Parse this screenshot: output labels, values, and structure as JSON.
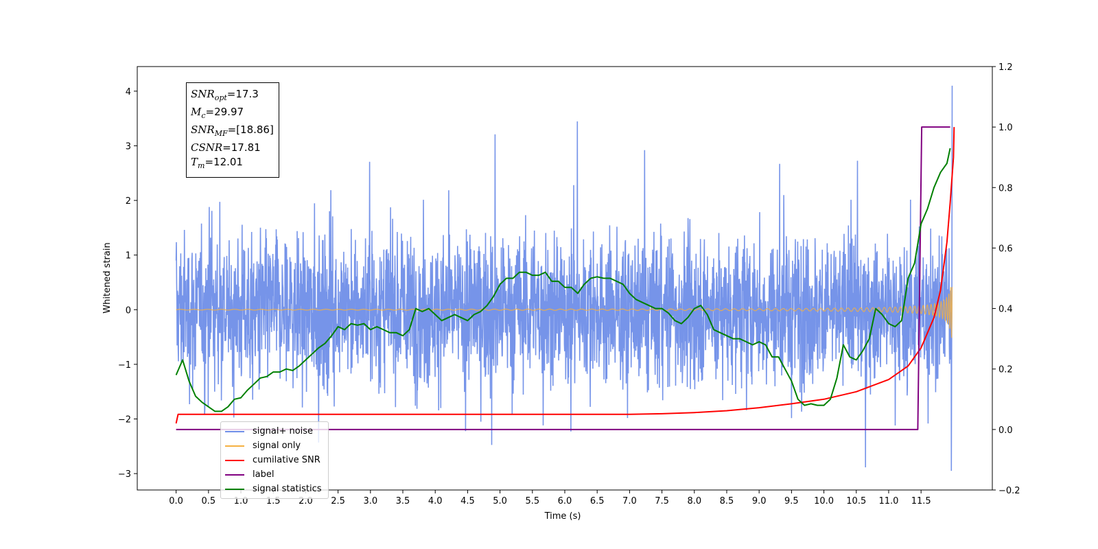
{
  "chart_data": {
    "type": "line",
    "xlabel": "Time (s)",
    "ylabel": "Whitened strain",
    "xlim": [
      -0.6,
      12.6
    ],
    "ylim": [
      -3.3,
      4.45
    ],
    "y2lim": [
      -0.2,
      1.2
    ],
    "x_ticks": [
      "0.0",
      "0.5",
      "1.0",
      "1.5",
      "2.0",
      "2.5",
      "3.0",
      "3.5",
      "4.0",
      "4.5",
      "5.0",
      "5.5",
      "6.0",
      "6.5",
      "7.0",
      "7.5",
      "8.0",
      "8.5",
      "9.0",
      "9.5",
      "10.0",
      "10.5",
      "11.0",
      "11.5"
    ],
    "y_ticks": [
      "−3",
      "−2",
      "−1",
      "0",
      "1",
      "2",
      "3",
      "4"
    ],
    "y2_ticks": [
      "−0.2",
      "0.0",
      "0.2",
      "0.4",
      "0.6",
      "0.8",
      "1.0",
      "1.2"
    ],
    "annotation": {
      "snr_opt": "=17.3",
      "mc": "=29.97",
      "snr_mf": "=[18.86]",
      "csnr": "=17.81",
      "tm": "=12.01"
    },
    "legend_position": "lower-left",
    "series": [
      {
        "name": "signal+ noise",
        "color": "#6f8ee8",
        "axis": "left"
      },
      {
        "name": "signal only",
        "color": "#f5b041",
        "axis": "left"
      },
      {
        "name": "cumilative SNR",
        "color": "#ff0000",
        "axis": "right",
        "x": [
          0.0,
          0.03,
          1.0,
          3.0,
          5.0,
          7.0,
          7.5,
          8.0,
          8.5,
          9.0,
          9.5,
          10.0,
          10.5,
          11.0,
          11.3,
          11.5,
          11.7,
          11.8,
          11.9,
          11.95,
          12.0,
          12.01
        ],
        "values": [
          0.02,
          0.05,
          0.05,
          0.05,
          0.05,
          0.05,
          0.052,
          0.056,
          0.062,
          0.072,
          0.085,
          0.1,
          0.125,
          0.165,
          0.21,
          0.27,
          0.37,
          0.46,
          0.62,
          0.75,
          0.9,
          1.0
        ]
      },
      {
        "name": "label",
        "color": "#800080",
        "axis": "right",
        "x": [
          0.0,
          11.45,
          11.51,
          11.95
        ],
        "values": [
          0.0,
          0.0,
          1.0,
          1.0
        ]
      },
      {
        "name": "signal statistics",
        "color": "#008000",
        "axis": "right",
        "x": [
          0.0,
          0.1,
          0.2,
          0.3,
          0.4,
          0.5,
          0.6,
          0.7,
          0.8,
          0.9,
          1.0,
          1.1,
          1.2,
          1.3,
          1.4,
          1.5,
          1.6,
          1.7,
          1.8,
          1.9,
          2.0,
          2.1,
          2.2,
          2.3,
          2.4,
          2.5,
          2.6,
          2.7,
          2.8,
          2.9,
          3.0,
          3.1,
          3.2,
          3.3,
          3.4,
          3.5,
          3.6,
          3.7,
          3.8,
          3.9,
          4.0,
          4.1,
          4.2,
          4.3,
          4.4,
          4.5,
          4.6,
          4.7,
          4.8,
          4.9,
          5.0,
          5.1,
          5.2,
          5.3,
          5.4,
          5.5,
          5.6,
          5.7,
          5.8,
          5.9,
          6.0,
          6.1,
          6.2,
          6.3,
          6.4,
          6.5,
          6.6,
          6.7,
          6.8,
          6.9,
          7.0,
          7.1,
          7.2,
          7.3,
          7.4,
          7.5,
          7.6,
          7.7,
          7.8,
          7.9,
          8.0,
          8.1,
          8.2,
          8.3,
          8.4,
          8.5,
          8.6,
          8.7,
          8.8,
          8.9,
          9.0,
          9.1,
          9.2,
          9.3,
          9.4,
          9.5,
          9.6,
          9.7,
          9.8,
          9.9,
          10.0,
          10.1,
          10.2,
          10.3,
          10.4,
          10.5,
          10.6,
          10.7,
          10.8,
          10.9,
          11.0,
          11.1,
          11.2,
          11.3,
          11.4,
          11.5,
          11.6,
          11.7,
          11.8,
          11.9,
          11.95
        ],
        "values": [
          0.18,
          0.23,
          0.16,
          0.11,
          0.09,
          0.075,
          0.06,
          0.06,
          0.075,
          0.1,
          0.105,
          0.13,
          0.15,
          0.17,
          0.175,
          0.19,
          0.19,
          0.2,
          0.195,
          0.21,
          0.23,
          0.25,
          0.27,
          0.285,
          0.31,
          0.34,
          0.33,
          0.35,
          0.345,
          0.35,
          0.33,
          0.34,
          0.33,
          0.32,
          0.32,
          0.31,
          0.33,
          0.4,
          0.39,
          0.4,
          0.38,
          0.36,
          0.37,
          0.38,
          0.37,
          0.36,
          0.38,
          0.39,
          0.41,
          0.44,
          0.48,
          0.5,
          0.5,
          0.52,
          0.52,
          0.51,
          0.51,
          0.52,
          0.49,
          0.49,
          0.47,
          0.47,
          0.45,
          0.48,
          0.5,
          0.505,
          0.5,
          0.5,
          0.49,
          0.48,
          0.45,
          0.43,
          0.42,
          0.41,
          0.4,
          0.4,
          0.385,
          0.36,
          0.35,
          0.37,
          0.4,
          0.41,
          0.38,
          0.33,
          0.32,
          0.31,
          0.3,
          0.3,
          0.29,
          0.28,
          0.29,
          0.28,
          0.24,
          0.24,
          0.2,
          0.16,
          0.1,
          0.08,
          0.085,
          0.08,
          0.08,
          0.1,
          0.17,
          0.28,
          0.24,
          0.23,
          0.26,
          0.3,
          0.4,
          0.38,
          0.35,
          0.34,
          0.36,
          0.5,
          0.55,
          0.68,
          0.73,
          0.8,
          0.85,
          0.88,
          0.93
        ]
      }
    ]
  }
}
